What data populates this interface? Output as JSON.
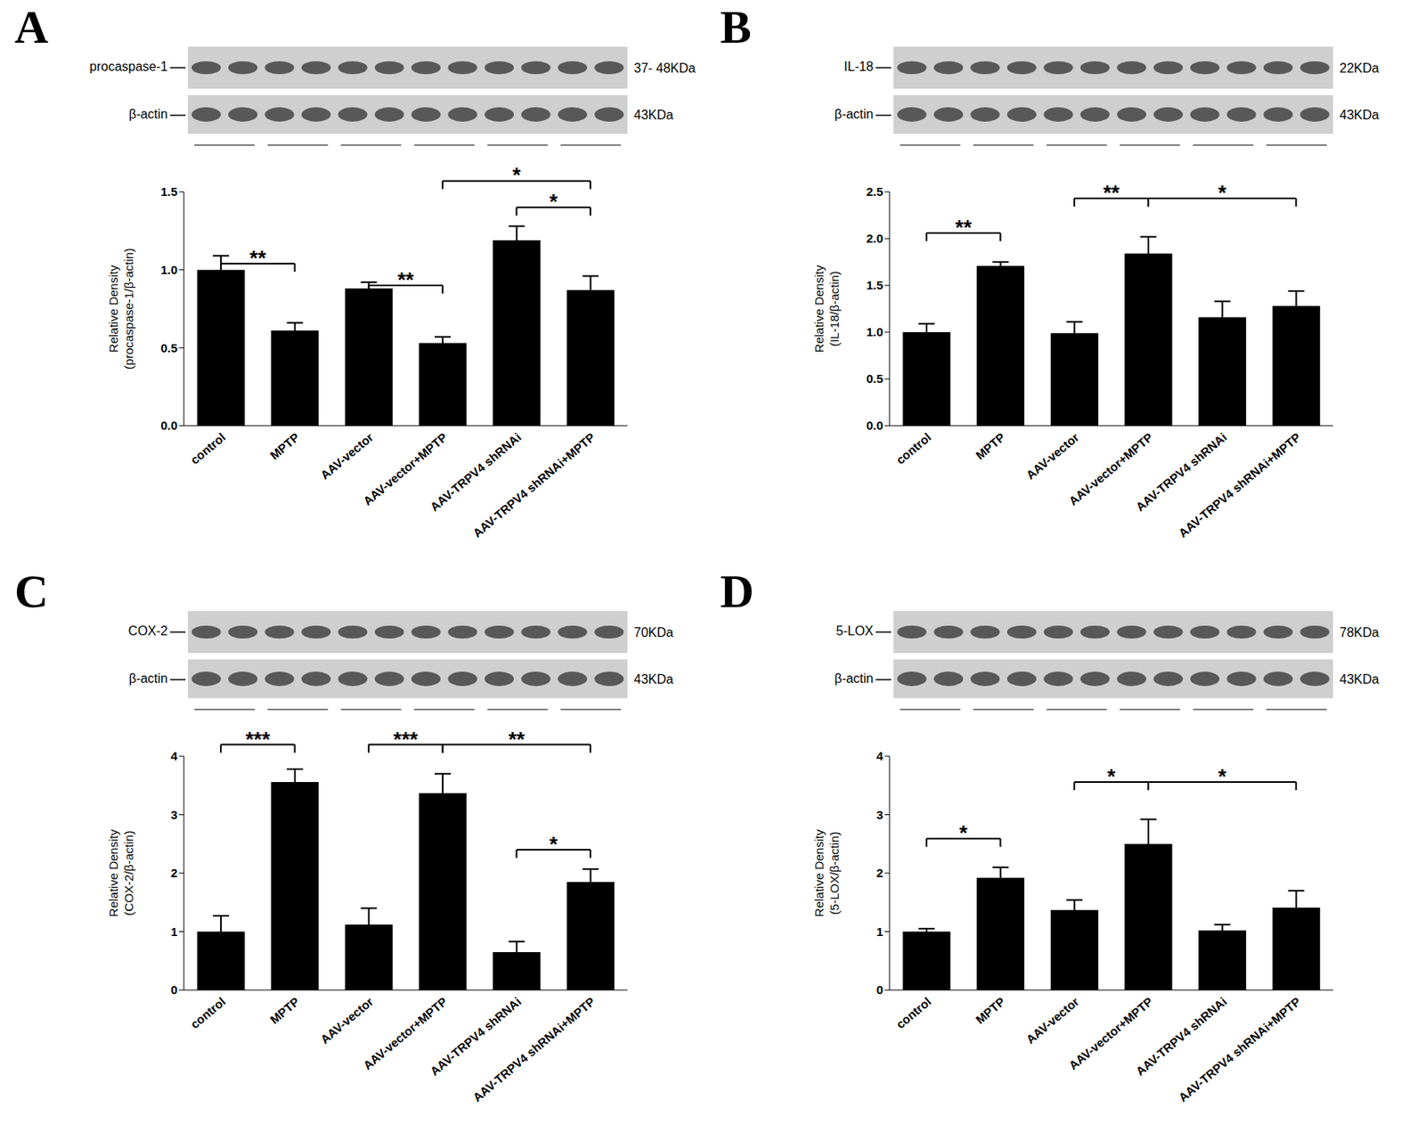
{
  "chart_data": [
    {
      "panel_label": "A",
      "type": "bar",
      "blot": {
        "target": "procaspase-1",
        "target_kda": "37- 48KDa",
        "control": "β-actin",
        "control_kda": "43KDa"
      },
      "y_label": [
        "Relative Density",
        "(procaspase-1/β-actin)"
      ],
      "categories": [
        "control",
        "MPTP",
        "AAV-vector",
        "AAV-vector+MPTP",
        "AAV-TRPV4 shRNAi",
        "AAV-TRPV4 shRNAi+MPTP"
      ],
      "values": [
        1.0,
        0.61,
        0.88,
        0.53,
        1.19,
        0.87
      ],
      "errors": [
        0.09,
        0.05,
        0.04,
        0.04,
        0.09,
        0.09
      ],
      "color": "#000000",
      "ylim": [
        0,
        1.5
      ],
      "yticks": [
        {
          "value": 0,
          "label": "0.0"
        },
        {
          "value": 0.5,
          "label": "0.5"
        },
        {
          "value": 1,
          "label": "1.0"
        },
        {
          "value": 1.5,
          "label": "1.5"
        }
      ],
      "brackets": [
        {
          "from": 0,
          "to": 1,
          "y": 1.04,
          "label": "**"
        },
        {
          "from": 2,
          "to": 3,
          "y": 0.9,
          "label": "**"
        },
        {
          "from": 3,
          "to": 5,
          "y": 1.57,
          "label": "*"
        },
        {
          "from": 4,
          "to": 5,
          "y": 1.4,
          "label": "*"
        }
      ]
    },
    {
      "panel_label": "B",
      "type": "bar",
      "blot": {
        "target": "IL-18",
        "target_kda": "22KDa",
        "control": "β-actin",
        "control_kda": "43KDa"
      },
      "y_label": [
        "Relative Density",
        "(IL-18/β-actin)"
      ],
      "categories": [
        "control",
        "MPTP",
        "AAV-vector",
        "AAV-vector+MPTP",
        "AAV-TRPV4 shRNAi",
        "AAV-TRPV4 shRNAi+MPTP"
      ],
      "values": [
        1.0,
        1.71,
        0.99,
        1.84,
        1.16,
        1.28
      ],
      "errors": [
        0.09,
        0.04,
        0.12,
        0.18,
        0.17,
        0.16
      ],
      "color": "#000000",
      "ylim": [
        0,
        2.5
      ],
      "yticks": [
        {
          "value": 0,
          "label": "0.0"
        },
        {
          "value": 0.5,
          "label": "0.5"
        },
        {
          "value": 1,
          "label": "1.0"
        },
        {
          "value": 1.5,
          "label": "1.5"
        },
        {
          "value": 2,
          "label": "2.0"
        },
        {
          "value": 2.5,
          "label": "2.5"
        }
      ],
      "brackets": [
        {
          "from": 0,
          "to": 1,
          "y": 2.06,
          "label": "**"
        },
        {
          "from": 2,
          "to": 3,
          "y": 2.43,
          "label": "**"
        },
        {
          "from": 3,
          "to": 5,
          "y": 2.43,
          "label": "*"
        }
      ]
    },
    {
      "panel_label": "C",
      "type": "bar",
      "blot": {
        "target": "COX-2",
        "target_kda": "70KDa",
        "control": "β-actin",
        "control_kda": "43KDa"
      },
      "y_label": [
        "Relative Density",
        "(COX-2/β-actin)"
      ],
      "categories": [
        "control",
        "MPTP",
        "AAV-vector",
        "AAV-vector+MPTP",
        "AAV-TRPV4 shRNAi",
        "AAV-TRPV4 shRNAi+MPTP"
      ],
      "values": [
        1.0,
        3.56,
        1.12,
        3.37,
        0.65,
        1.85
      ],
      "errors": [
        0.27,
        0.22,
        0.28,
        0.33,
        0.18,
        0.22
      ],
      "color": "#000000",
      "ylim": [
        0,
        4
      ],
      "yticks": [
        0,
        1,
        2,
        3,
        4
      ],
      "brackets": [
        {
          "from": 0,
          "to": 1,
          "y": 4.2,
          "label": "***"
        },
        {
          "from": 2,
          "to": 3,
          "y": 4.2,
          "label": "***"
        },
        {
          "from": 3,
          "to": 5,
          "y": 4.2,
          "label": "**"
        },
        {
          "from": 4,
          "to": 5,
          "y": 2.4,
          "label": "*"
        }
      ]
    },
    {
      "panel_label": "D",
      "type": "bar",
      "blot": {
        "target": "5-LOX",
        "target_kda": "78KDa",
        "control": "β-actin",
        "control_kda": "43KDa"
      },
      "y_label": [
        "Relative Density",
        "(5-LOX/β-actin)"
      ],
      "categories": [
        "control",
        "MPTP",
        "AAV-vector",
        "AAV-vector+MPTP",
        "AAV-TRPV4 shRNAi",
        "AAV-TRPV4 shRNAi+MPTP"
      ],
      "values": [
        1.0,
        1.92,
        1.37,
        2.5,
        1.02,
        1.41
      ],
      "errors": [
        0.05,
        0.18,
        0.17,
        0.42,
        0.1,
        0.29
      ],
      "color": "#000000",
      "ylim": [
        0,
        4
      ],
      "yticks": [
        0,
        1,
        2,
        3,
        4
      ],
      "brackets": [
        {
          "from": 0,
          "to": 1,
          "y": 2.59,
          "label": "*"
        },
        {
          "from": 2,
          "to": 3,
          "y": 3.56,
          "label": "*"
        },
        {
          "from": 3,
          "to": 5,
          "y": 3.56,
          "label": "*"
        }
      ]
    }
  ]
}
